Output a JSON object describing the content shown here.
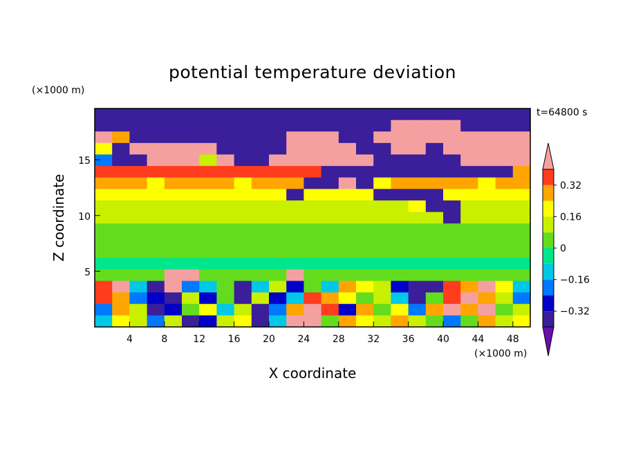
{
  "chart_data": {
    "type": "heatmap",
    "title": "potential temperature deviation",
    "xlabel": "X coordinate",
    "ylabel": "Z coordinate",
    "x_unit": "(×1000 m)",
    "y_unit": "(×1000 m)",
    "time_label": "t=64800 s",
    "xlim": [
      0,
      50
    ],
    "ylim": [
      0,
      19.6
    ],
    "x_ticks": [
      4,
      8,
      12,
      16,
      20,
      24,
      28,
      32,
      36,
      40,
      44,
      48
    ],
    "y_ticks": [
      5,
      10,
      15
    ],
    "colorbar": {
      "levels": [
        -0.4,
        -0.32,
        -0.24,
        -0.16,
        -0.08,
        0,
        0.08,
        0.16,
        0.24,
        0.32,
        0.4
      ],
      "labels": [
        "0.32",
        "0.16",
        "0",
        "-0.16",
        "-0.32"
      ],
      "label_values": [
        0.32,
        0.16,
        0,
        -0.16,
        -0.32
      ],
      "colors": [
        "#6a0dad",
        "#3a1e9a",
        "#0000c8",
        "#0078ff",
        "#00c8e6",
        "#00e68c",
        "#64dc1e",
        "#c8f000",
        "#ffff00",
        "#ffa500",
        "#ff3c1e",
        "#f5a0a0"
      ]
    },
    "field": {
      "rows_top_to_bottom_z": [
        19.2,
        18.0,
        17.0,
        16.0,
        15.0,
        14.0,
        13.0,
        12.0,
        11.0,
        10.0,
        9.0,
        8.0,
        7.0,
        6.0,
        5.0,
        4.0,
        3.0,
        2.0,
        1.0
      ],
      "cols_x": [
        1,
        3,
        5,
        7,
        9,
        11,
        13,
        15,
        17,
        19,
        21,
        23,
        25,
        27,
        29,
        31,
        33,
        35,
        37,
        39,
        41,
        43,
        45,
        47,
        49
      ],
      "values": [
        [
          -0.4,
          -0.4,
          -0.4,
          -0.4,
          -0.4,
          -0.4,
          -0.4,
          -0.4,
          -0.4,
          -0.4,
          -0.4,
          -0.4,
          -0.4,
          -0.4,
          -0.4,
          -0.4,
          -0.4,
          -0.4,
          -0.4,
          -0.4,
          -0.4,
          -0.4,
          -0.4,
          -0.4,
          -0.4
        ],
        [
          -0.4,
          -0.4,
          -0.4,
          -0.4,
          -0.4,
          -0.4,
          -0.4,
          -0.4,
          -0.4,
          -0.4,
          -0.4,
          -0.4,
          -0.4,
          -0.4,
          -0.4,
          -0.4,
          -0.4,
          0.45,
          0.45,
          0.45,
          0.45,
          -0.4,
          -0.4,
          -0.4,
          -0.4
        ],
        [
          0.45,
          0.3,
          -0.4,
          -0.4,
          -0.4,
          -0.4,
          -0.4,
          -0.4,
          -0.4,
          -0.4,
          -0.4,
          0.45,
          0.45,
          0.45,
          -0.4,
          -0.4,
          0.45,
          0.45,
          0.45,
          0.45,
          0.45,
          0.45,
          0.45,
          0.45,
          0.45
        ],
        [
          0.2,
          -0.4,
          0.45,
          0.45,
          0.45,
          0.45,
          0.45,
          -0.4,
          -0.4,
          -0.4,
          -0.4,
          0.45,
          0.45,
          0.45,
          0.45,
          -0.4,
          -0.4,
          0.45,
          0.45,
          -0.4,
          0.45,
          0.45,
          0.45,
          0.45,
          0.45
        ],
        [
          -0.2,
          -0.4,
          -0.4,
          0.45,
          0.45,
          0.45,
          0.1,
          0.45,
          -0.4,
          -0.4,
          0.45,
          0.45,
          0.45,
          0.45,
          0.45,
          0.45,
          -0.4,
          -0.4,
          -0.4,
          -0.4,
          -0.4,
          0.45,
          0.45,
          0.45,
          0.45
        ],
        [
          0.35,
          0.35,
          0.35,
          0.35,
          0.35,
          0.35,
          0.35,
          0.35,
          0.35,
          0.35,
          0.35,
          0.35,
          0.35,
          -0.4,
          -0.4,
          -0.4,
          -0.4,
          -0.4,
          -0.4,
          -0.4,
          -0.4,
          -0.4,
          -0.4,
          -0.4,
          0.3
        ],
        [
          0.25,
          0.25,
          0.25,
          0.2,
          0.25,
          0.25,
          0.25,
          0.25,
          0.2,
          0.25,
          0.25,
          0.25,
          -0.4,
          -0.4,
          0.45,
          -0.4,
          0.2,
          0.25,
          0.25,
          0.25,
          0.25,
          0.25,
          0.2,
          0.25,
          0.25
        ],
        [
          0.22,
          0.22,
          0.22,
          0.22,
          0.22,
          0.22,
          0.22,
          0.22,
          0.22,
          0.22,
          0.22,
          -0.4,
          0.22,
          0.22,
          0.22,
          0.22,
          -0.4,
          -0.4,
          -0.4,
          -0.4,
          0.22,
          0.22,
          0.22,
          0.22,
          0.22
        ],
        [
          0.15,
          0.15,
          0.15,
          0.15,
          0.15,
          0.15,
          0.15,
          0.15,
          0.15,
          0.15,
          0.15,
          0.15,
          0.15,
          0.15,
          0.15,
          0.15,
          0.15,
          0.15,
          0.2,
          -0.4,
          -0.4,
          0.15,
          0.15,
          0.15,
          0.15
        ],
        [
          0.12,
          0.12,
          0.12,
          0.12,
          0.12,
          0.12,
          0.12,
          0.12,
          0.12,
          0.12,
          0.12,
          0.12,
          0.12,
          0.12,
          0.12,
          0.12,
          0.12,
          0.12,
          0.12,
          0.12,
          -0.4,
          0.12,
          0.12,
          0.12,
          0.12
        ],
        [
          0.06,
          0.06,
          0.06,
          0.06,
          0.06,
          0.06,
          0.06,
          0.06,
          0.06,
          0.06,
          0.06,
          0.06,
          0.06,
          0.06,
          0.06,
          0.06,
          0.06,
          0.06,
          0.06,
          0.06,
          0.06,
          0.06,
          0.06,
          0.06,
          0.06
        ],
        [
          0.02,
          0.02,
          0.02,
          0.02,
          0.02,
          0.02,
          0.02,
          0.02,
          0.02,
          0.02,
          0.02,
          0.02,
          0.02,
          0.02,
          0.02,
          0.02,
          0.02,
          0.02,
          0.02,
          0.02,
          0.02,
          0.02,
          0.02,
          0.02,
          0.02
        ],
        [
          0.0,
          0.0,
          0.0,
          0.0,
          0.0,
          0.0,
          0.0,
          0.0,
          0.0,
          0.0,
          0.0,
          0.0,
          0.0,
          0.0,
          0.0,
          0.0,
          0.0,
          0.0,
          0.0,
          0.0,
          0.0,
          0.0,
          0.0,
          0.0,
          0.0
        ],
        [
          -0.02,
          -0.02,
          -0.02,
          -0.02,
          -0.02,
          -0.02,
          -0.02,
          -0.02,
          -0.02,
          -0.02,
          -0.02,
          -0.02,
          -0.02,
          -0.02,
          -0.02,
          -0.02,
          -0.02,
          -0.02,
          -0.02,
          -0.02,
          -0.02,
          -0.02,
          -0.02,
          -0.02,
          -0.02
        ],
        [
          0.0,
          0.0,
          0.0,
          0.0,
          0.45,
          0.45,
          0.0,
          0.0,
          0.0,
          0.0,
          0.0,
          0.45,
          0.0,
          0.0,
          0.0,
          0.0,
          0.0,
          0.0,
          0.0,
          0.0,
          0.0,
          0.0,
          0.0,
          0.0,
          0.0
        ],
        [
          0.35,
          0.45,
          -0.1,
          -0.4,
          0.45,
          -0.2,
          -0.1,
          0.05,
          -0.4,
          -0.15,
          0.1,
          -0.3,
          0.0,
          -0.1,
          0.3,
          0.2,
          0.1,
          -0.3,
          -0.4,
          -0.4,
          0.35,
          0.3,
          0.45,
          0.2,
          -0.1
        ],
        [
          0.35,
          0.3,
          -0.2,
          -0.3,
          -0.4,
          0.1,
          -0.3,
          0.0,
          -0.35,
          0.1,
          -0.3,
          -0.1,
          0.35,
          0.3,
          0.2,
          0.0,
          0.1,
          -0.1,
          -0.4,
          0.0,
          0.35,
          0.45,
          0.3,
          0.1,
          -0.2
        ],
        [
          -0.2,
          0.3,
          0.1,
          -0.4,
          -0.3,
          0.05,
          0.2,
          -0.1,
          0.1,
          -0.35,
          -0.2,
          0.25,
          0.4,
          0.35,
          -0.3,
          0.3,
          0.0,
          0.2,
          -0.2,
          0.3,
          0.4,
          0.3,
          0.45,
          0.0,
          0.1
        ],
        [
          -0.1,
          0.2,
          0.1,
          -0.2,
          0.1,
          -0.4,
          -0.3,
          0.15,
          0.2,
          -0.4,
          -0.1,
          0.4,
          0.45,
          0.0,
          0.3,
          0.2,
          0.1,
          0.3,
          0.1,
          0.0,
          -0.2,
          0.0,
          0.3,
          0.1,
          0.2
        ]
      ]
    }
  }
}
